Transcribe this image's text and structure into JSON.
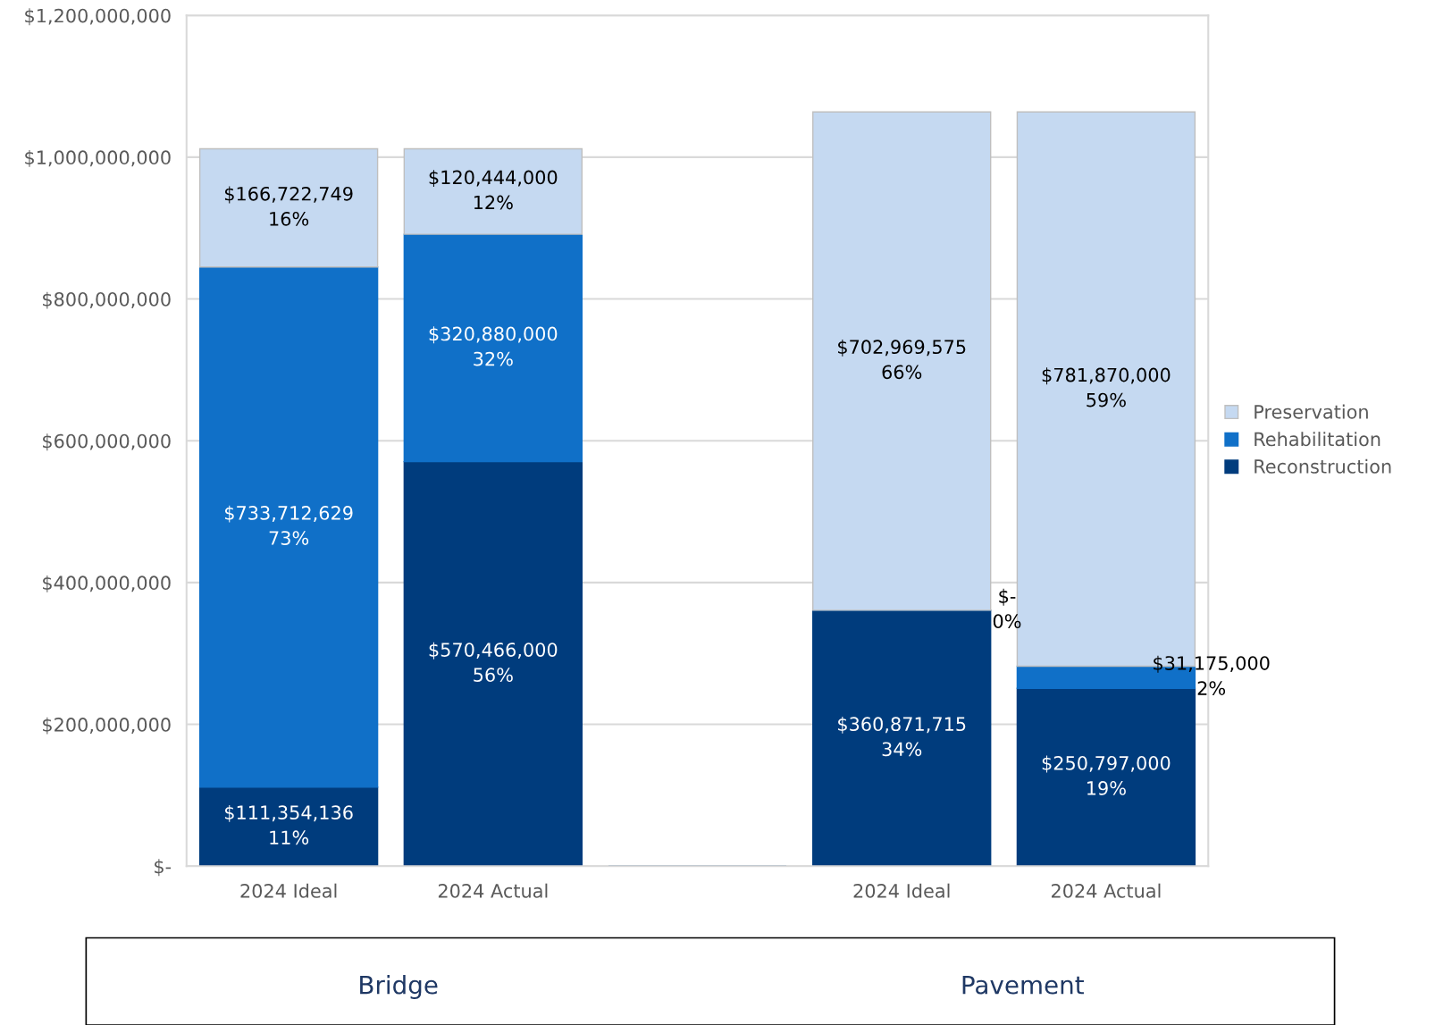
{
  "chart_data": {
    "type": "bar",
    "stacked": true,
    "categories": [
      "2024 Ideal",
      "2024 Actual",
      null,
      "2024 Ideal",
      "2024 Actual"
    ],
    "series": [
      {
        "name": "Reconstruction",
        "color": "#003c7d",
        "values": [
          111354136,
          570466000,
          null,
          360871715,
          250797000
        ],
        "value_labels": [
          "$111,354,136\n11%",
          "$570,466,000\n56%",
          null,
          "$360,871,715\n34%",
          "$250,797,000\n19%"
        ]
      },
      {
        "name": "Rehabilitation",
        "color": "#1070c8",
        "values": [
          733712629,
          320880000,
          null,
          0,
          31175000
        ],
        "value_labels": [
          "$733,712,629\n73%",
          "$320,880,000\n32%",
          null,
          "$-\n0%",
          "$31,175,000\n2%"
        ]
      },
      {
        "name": "Preservation",
        "color": "#c5d9f1",
        "values": [
          166722749,
          120444000,
          null,
          702969575,
          781870000
        ],
        "value_labels": [
          "$166,722,749\n16%",
          "$120,444,000\n12%",
          null,
          "$702,969,575\n66%",
          "$781,870,000\n59%"
        ]
      }
    ],
    "ylim": [
      0,
      1200000000
    ],
    "yticks": [
      {
        "value": 0,
        "label": "$-"
      },
      {
        "value": 200000000,
        "label": "$200,000,000"
      },
      {
        "value": 400000000,
        "label": "$400,000,000"
      },
      {
        "value": 600000000,
        "label": "$600,000,000"
      },
      {
        "value": 800000000,
        "label": "$800,000,000"
      },
      {
        "value": 1000000000,
        "label": "$1,000,000,000"
      },
      {
        "value": 1200000000,
        "label": "$1,200,000,000"
      }
    ],
    "grid": "y",
    "legend": "right",
    "annotations": [
      "Bridge",
      "Pavement"
    ]
  }
}
